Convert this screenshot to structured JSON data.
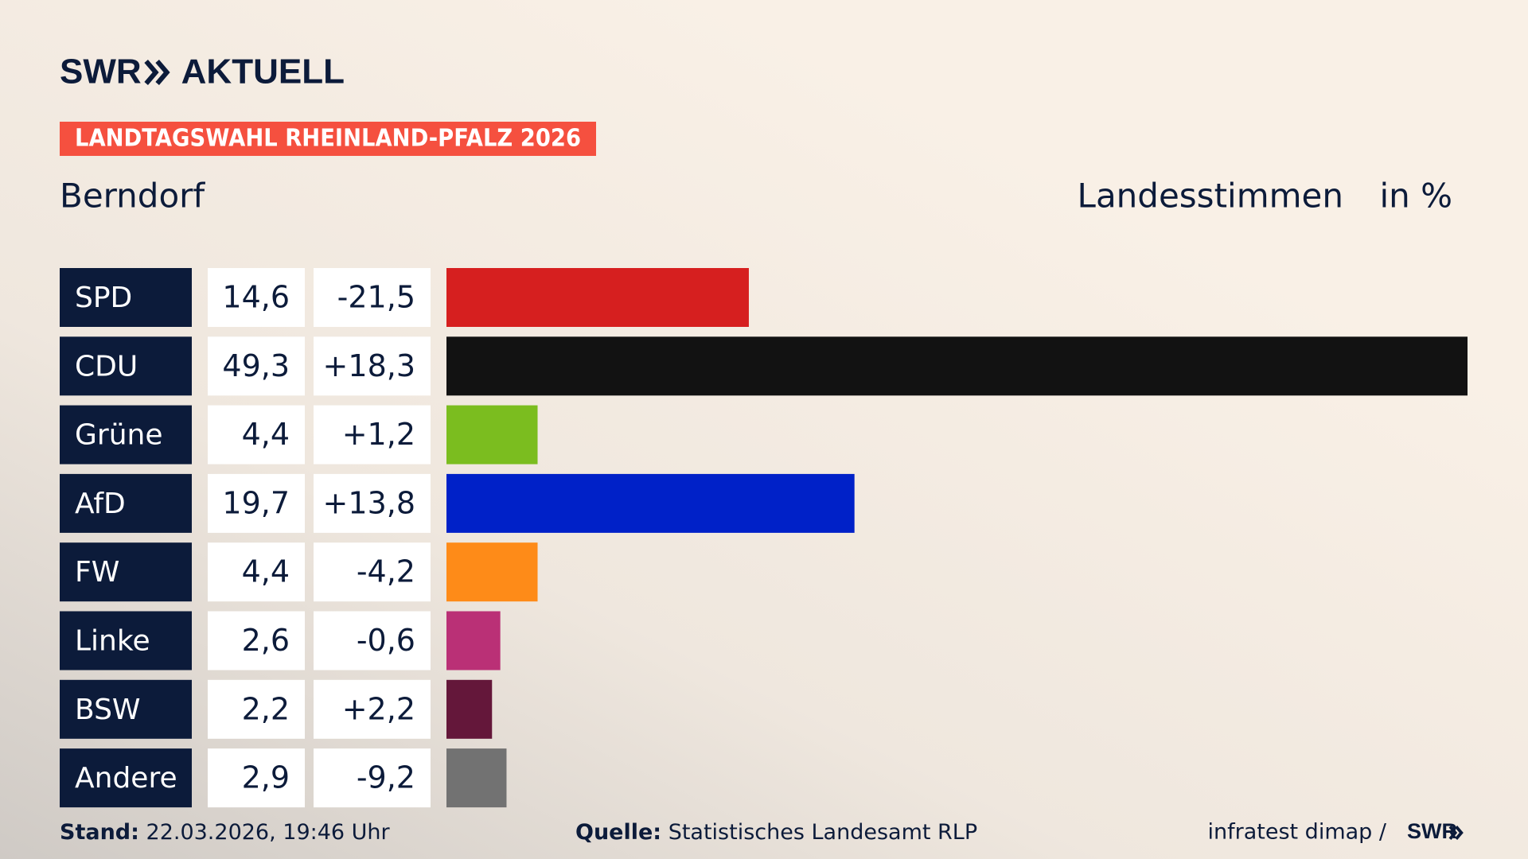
{
  "header": {
    "brand": "SWR",
    "product": "AKTUELL",
    "banner": "LANDTAGSWAHL RHEINLAND-PFALZ 2026"
  },
  "chart_data": {
    "type": "bar",
    "title": "Berndorf",
    "subtitle": "Landesstimmen",
    "unit": "in %",
    "categories": [
      "SPD",
      "CDU",
      "Grüne",
      "AfD",
      "FW",
      "Linke",
      "BSW",
      "Andere"
    ],
    "values": [
      14.6,
      49.3,
      4.4,
      19.7,
      4.4,
      2.6,
      2.2,
      2.9
    ],
    "value_labels": [
      "14,6",
      "49,3",
      "4,4",
      "19,7",
      "4,4",
      "2,6",
      "2,2",
      "2,9"
    ],
    "changes": [
      -21.5,
      18.3,
      1.2,
      13.8,
      -4.2,
      -0.6,
      2.2,
      -9.2
    ],
    "change_labels": [
      "-21,5",
      "+18,3",
      "+1,2",
      "+13,8",
      "-4,2",
      "-0,6",
      "+2,2",
      "-9,2"
    ],
    "colors": [
      "#d61f1f",
      "#121212",
      "#7bbd1f",
      "#0021c8",
      "#fe8b18",
      "#ba3076",
      "#64173a",
      "#727272"
    ]
  },
  "footer": {
    "stand_label": "Stand:",
    "stand": "22.03.2026, 19:46 Uhr",
    "source_label": "Quelle:",
    "source": "Statistisches Landesamt RLP",
    "credit": "infratest dimap /",
    "brand": "SWR"
  }
}
